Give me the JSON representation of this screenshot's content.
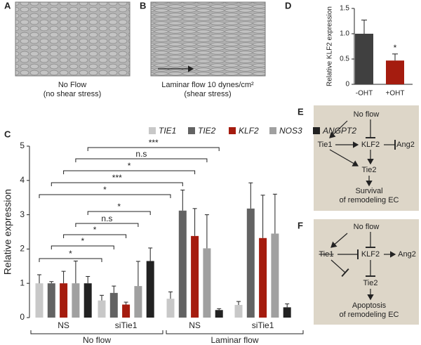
{
  "panels": {
    "a": "A",
    "b": "B",
    "c": "C",
    "d": "D",
    "e": "E",
    "f": "F"
  },
  "image_a": {
    "caption": [
      "No Flow",
      "(no shear stress)"
    ]
  },
  "image_b": {
    "caption": [
      "Laminar flow 10 dynes/cm²",
      "(shear stress)"
    ]
  },
  "chart_data": [
    {
      "type": "bar",
      "ylabel": "Relative expression",
      "categories": [
        "NS",
        "siTie1",
        "NS",
        "siTie1"
      ],
      "group_labels": [
        "No flow",
        "Laminar flow"
      ],
      "series": [
        {
          "name": "TIE1",
          "color": "#c8c8c8",
          "values": [
            1.0,
            0.5,
            0.55,
            0.37
          ],
          "errors": [
            0.25,
            0.15,
            0.2,
            0.1
          ]
        },
        {
          "name": "TIE2",
          "color": "#636363",
          "values": [
            1.0,
            0.72,
            3.12,
            3.18
          ],
          "errors": [
            0.05,
            0.2,
            0.6,
            0.75
          ]
        },
        {
          "name": "KLF2",
          "color": "#a51c0f",
          "values": [
            1.0,
            0.38,
            2.38,
            2.32
          ],
          "errors": [
            0.35,
            0.07,
            0.8,
            1.25
          ]
        },
        {
          "name": "NOS3",
          "color": "#a0a0a0",
          "values": [
            1.0,
            0.92,
            2.02,
            2.45
          ],
          "errors": [
            0.65,
            0.72,
            0.98,
            1.15
          ]
        },
        {
          "name": "ANGPT2",
          "color": "#222222",
          "values": [
            1.0,
            1.65,
            0.22,
            0.3
          ],
          "errors": [
            0.2,
            0.38,
            0.04,
            0.1
          ]
        }
      ],
      "ylim": [
        0,
        5
      ],
      "yticks": [
        0,
        1,
        2,
        3,
        4,
        5
      ],
      "significance": [
        "*",
        "*",
        "*",
        "n.s",
        "*",
        "*",
        "***",
        "*",
        "n.s",
        "***"
      ]
    },
    {
      "type": "bar",
      "ylabel": "Relative KLF2 expression",
      "categories": [
        "-OHT",
        "+OHT"
      ],
      "values": [
        1.0,
        0.47
      ],
      "errors": [
        0.27,
        0.13
      ],
      "colors": [
        "#404040",
        "#a51c0f"
      ],
      "ylim": [
        0,
        1.5
      ],
      "yticks": [
        0,
        0.5,
        {
          "value": 1,
          "label": "1.0"
        },
        1.5
      ],
      "annotations": [
        "*"
      ]
    }
  ],
  "diagram_e": {
    "nodes": [
      "No flow",
      "Tie1",
      "KLF2",
      "Ang2",
      "Tie2"
    ],
    "outcome": [
      "Survival",
      "of remodeling EC"
    ]
  },
  "diagram_f": {
    "nodes": [
      "No flow",
      "Tie1",
      "KLF2",
      "Ang2",
      "Tie2"
    ],
    "outcome": [
      "Apoptosis",
      "of remodeling EC"
    ]
  }
}
